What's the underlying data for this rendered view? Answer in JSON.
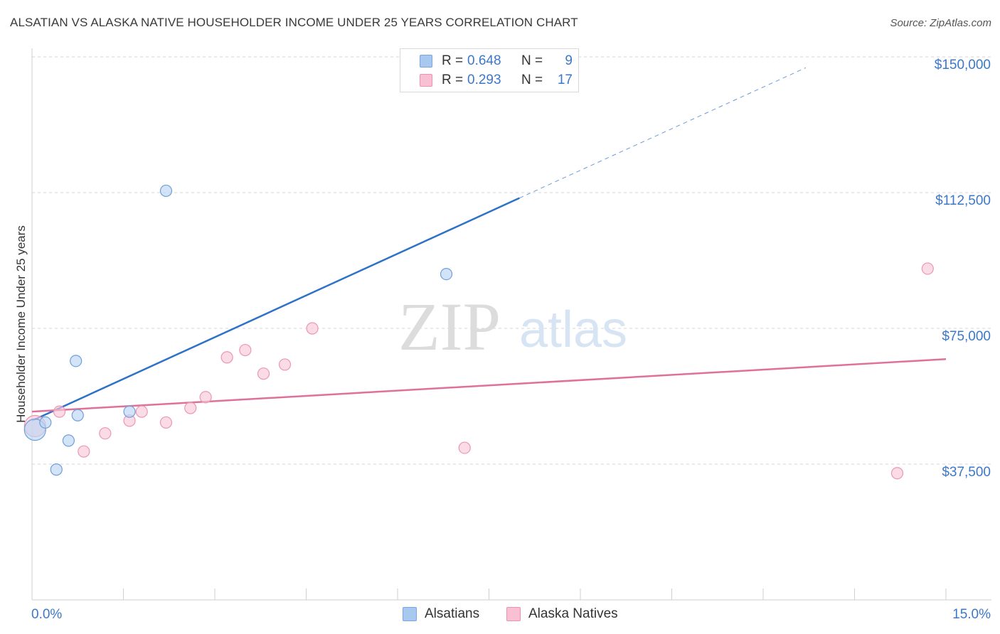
{
  "title": "ALSATIAN VS ALASKA NATIVE HOUSEHOLDER INCOME UNDER 25 YEARS CORRELATION CHART",
  "source": "Source: ZipAtlas.com",
  "watermark": {
    "zip": "ZIP",
    "atlas": "atlas"
  },
  "legend": {
    "rows": [
      {
        "r_label": "R =",
        "r_value": "0.648",
        "n_label": "N =",
        "n_value": "9",
        "color": "#a9c8f0",
        "border": "#7aa6de"
      },
      {
        "r_label": "R =",
        "r_value": "0.293",
        "n_label": "N =",
        "n_value": "17",
        "color": "#f8c0d2",
        "border": "#eb93b1"
      }
    ]
  },
  "bottom_legend": [
    "Alsatians",
    "Alaska Natives"
  ],
  "colors": {
    "blue_fill": "#bcd5f4",
    "blue_stroke": "#6f9fd8",
    "blue_line": "#2d72c8",
    "pink_fill": "#f9c9d8",
    "pink_stroke": "#ea97b3",
    "pink_line": "#e0709a",
    "tick_label": "#3b78c9",
    "grid": "#d6d6d6"
  },
  "chart_data": {
    "type": "scatter",
    "title": "ALSATIAN VS ALASKA NATIVE HOUSEHOLDER INCOME UNDER 25 YEARS CORRELATION CHART",
    "xlabel": "",
    "ylabel": "Householder Income Under 25 years",
    "xlim": [
      0,
      15
    ],
    "ylim": [
      0,
      155000
    ],
    "x_tick_labels": [
      "0.0%",
      "15.0%"
    ],
    "y_ticks": [
      37500,
      75000,
      112500,
      150000
    ],
    "y_tick_labels": [
      "$37,500",
      "$75,000",
      "$112,500",
      "$150,000"
    ],
    "series": [
      {
        "name": "Alsatians",
        "points": [
          {
            "x": 0.05,
            "y": 47000,
            "big": true
          },
          {
            "x": 0.22,
            "y": 49000
          },
          {
            "x": 0.4,
            "y": 36000
          },
          {
            "x": 0.6,
            "y": 44000
          },
          {
            "x": 0.75,
            "y": 51000
          },
          {
            "x": 0.72,
            "y": 66000
          },
          {
            "x": 1.6,
            "y": 52000
          },
          {
            "x": 2.2,
            "y": 113000
          },
          {
            "x": 6.8,
            "y": 90000
          }
        ],
        "trend": {
          "x0": 0.0,
          "y0": 49500,
          "x1": 8.0,
          "y1": 111000,
          "dash_to_x": 12.7,
          "dash_to_y": 147000
        }
      },
      {
        "name": "Alaska Natives",
        "points": [
          {
            "x": 0.05,
            "y": 48000,
            "big": true
          },
          {
            "x": 0.45,
            "y": 52000
          },
          {
            "x": 0.85,
            "y": 41000
          },
          {
            "x": 1.2,
            "y": 46000
          },
          {
            "x": 1.6,
            "y": 49500
          },
          {
            "x": 1.8,
            "y": 52000
          },
          {
            "x": 2.2,
            "y": 49000
          },
          {
            "x": 2.6,
            "y": 53000
          },
          {
            "x": 2.85,
            "y": 56000
          },
          {
            "x": 3.2,
            "y": 67000
          },
          {
            "x": 3.5,
            "y": 69000
          },
          {
            "x": 3.8,
            "y": 62500
          },
          {
            "x": 4.15,
            "y": 65000
          },
          {
            "x": 4.6,
            "y": 75000
          },
          {
            "x": 7.1,
            "y": 42000
          },
          {
            "x": 14.2,
            "y": 35000
          },
          {
            "x": 14.7,
            "y": 91500
          }
        ],
        "trend": {
          "x0": 0.0,
          "y0": 52000,
          "x1": 15.0,
          "y1": 66500
        }
      }
    ]
  }
}
